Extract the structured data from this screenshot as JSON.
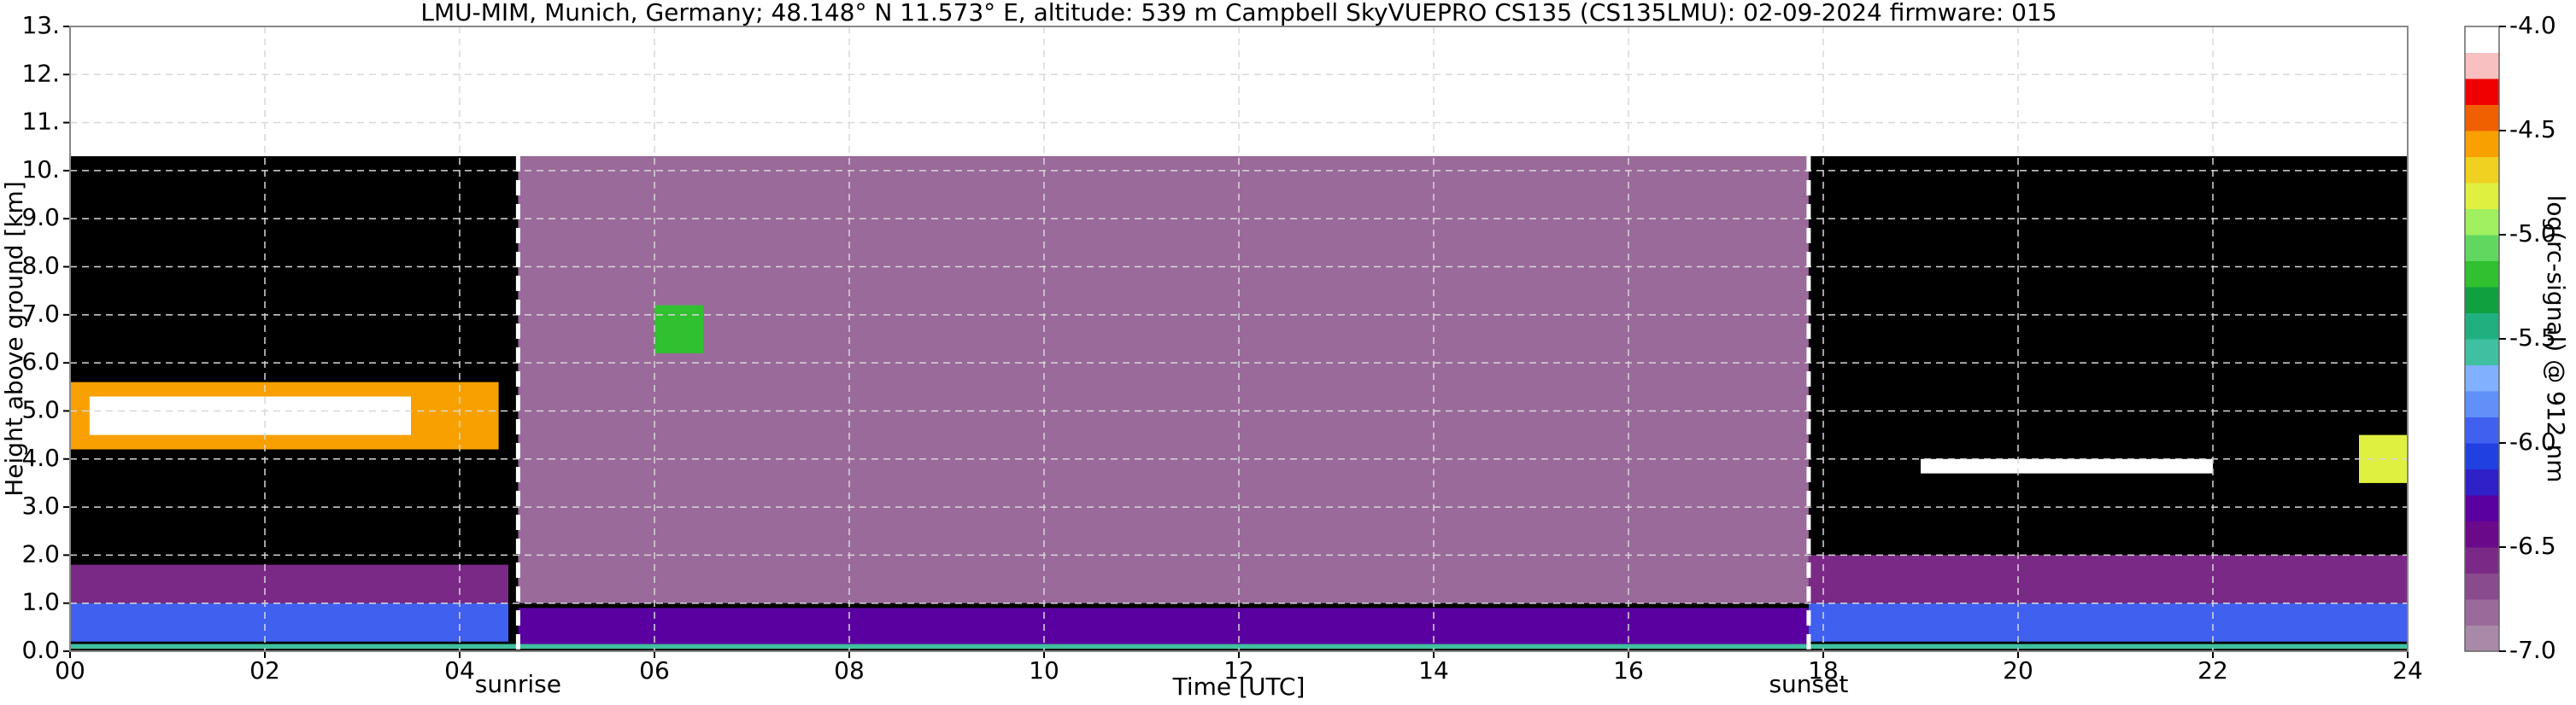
{
  "chart_data": {
    "type": "heatmap",
    "title": "LMU-MIM, Munich, Germany; 48.148° N 11.573° E, altitude: 539 m    Campbell SkyVUEPRO CS135 (CS135LMU): 02-09-2024    firmware: 015",
    "x_label": "Time [UTC]",
    "y_label": "Height above ground [km]",
    "colorbar_label": "log(rc-signal) @ 912 nm",
    "xlim": [
      0,
      24
    ],
    "xticks": [
      {
        "value": 0,
        "label": "00"
      },
      {
        "value": 2,
        "label": "02"
      },
      {
        "value": 4,
        "label": "04"
      },
      {
        "value": 6,
        "label": "06"
      },
      {
        "value": 8,
        "label": "08"
      },
      10,
      12,
      14,
      16,
      18,
      20,
      22,
      24
    ],
    "ylim": [
      0,
      13
    ],
    "yticks": [
      {
        "value": 0,
        "label": "0.0"
      },
      {
        "value": 1,
        "label": "1.0"
      },
      {
        "value": 2,
        "label": "2.0"
      },
      {
        "value": 3,
        "label": "3.0"
      },
      {
        "value": 4,
        "label": "4.0"
      },
      {
        "value": 5,
        "label": "5.0"
      },
      {
        "value": 6,
        "label": "6.0"
      },
      {
        "value": 7,
        "label": "7.0"
      },
      {
        "value": 8,
        "label": "8.0"
      },
      {
        "value": 9,
        "label": "9.0"
      },
      {
        "value": 10,
        "label": "10."
      },
      {
        "value": 11,
        "label": "11."
      },
      {
        "value": 12,
        "label": "12."
      },
      {
        "value": 13,
        "label": "13."
      }
    ],
    "clim": [
      -7,
      -4
    ],
    "cticks": [
      {
        "value": -7,
        "label": "-7.0"
      },
      -6.5,
      {
        "value": -6,
        "label": "-6.0"
      },
      -5.5,
      {
        "value": -5,
        "label": "-5.0"
      },
      -4.5,
      {
        "value": -4,
        "label": "-4.0"
      }
    ],
    "colors": [
      "#a88aa8",
      "#9a6a9a",
      "#8a4a8e",
      "#7a2a86",
      "#6a0a8a",
      "#5a00a0",
      "#3020c8",
      "#2040e0",
      "#4060f0",
      "#6090f8",
      "#80b0ff",
      "#40c0a0",
      "#20b080",
      "#10a040",
      "#30c030",
      "#60d860",
      "#a0f060",
      "#e0f040",
      "#f0d020",
      "#f8a000",
      "#f06000",
      "#f00000",
      "#f8c0c0",
      "#ffffff"
    ],
    "grid": true,
    "measured_top": 10.3,
    "regions": [
      {
        "x": [
          0,
          24
        ],
        "y": [
          0.05,
          0.15
        ],
        "value": -5.6
      },
      {
        "x": [
          0,
          4.5
        ],
        "y": [
          0.2,
          1.0
        ],
        "value": -5.9
      },
      {
        "x": [
          0,
          4.5
        ],
        "y": [
          1.0,
          1.8
        ],
        "value": -6.6
      },
      {
        "x": [
          0,
          4.4
        ],
        "y": [
          4.2,
          5.6
        ],
        "value": -4.6
      },
      {
        "x": [
          0.2,
          3.5
        ],
        "y": [
          4.5,
          5.3
        ],
        "value": -4.1
      },
      {
        "x": [
          4.6,
          17.85
        ],
        "y": [
          1.0,
          10.3
        ],
        "value": -6.8
      },
      {
        "x": [
          4.6,
          17.85
        ],
        "y": [
          0.15,
          0.9
        ],
        "value": -6.3
      },
      {
        "x": [
          6.0,
          6.5
        ],
        "y": [
          6.2,
          7.2
        ],
        "value": -5.2
      },
      {
        "x": [
          17.85,
          24
        ],
        "y": [
          0.2,
          1.0
        ],
        "value": -5.9
      },
      {
        "x": [
          17.85,
          24
        ],
        "y": [
          1.0,
          2.0
        ],
        "value": -6.6
      },
      {
        "x": [
          19,
          22
        ],
        "y": [
          3.7,
          4.0
        ],
        "value": -4.1
      },
      {
        "x": [
          23.5,
          24
        ],
        "y": [
          3.5,
          4.5
        ],
        "value": -4.8
      }
    ],
    "annotations": [
      {
        "text": "sunrise",
        "x": 4.6
      },
      {
        "text": "sunset",
        "x": 17.85
      }
    ]
  }
}
